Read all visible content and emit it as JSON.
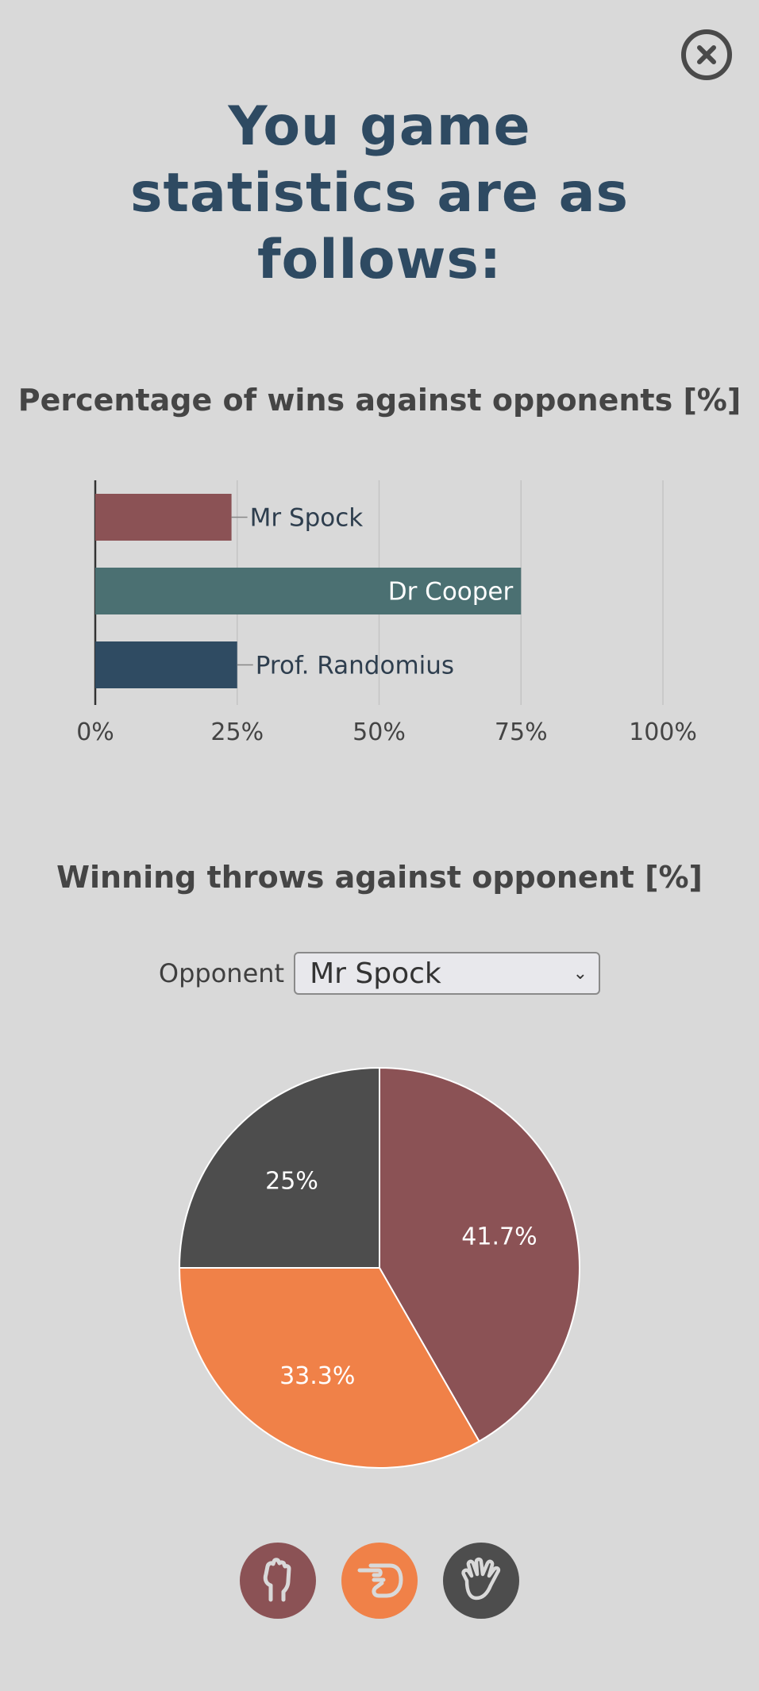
{
  "page": {
    "title": "You game statistics are as follows:",
    "close_icon": "close-circle-icon"
  },
  "wins_chart": {
    "title": "Percentage of wins against opponents [%]"
  },
  "throws_chart": {
    "title": "Winning throws against opponent [%]",
    "opponent_label": "Opponent",
    "opponent_selected": "Mr Spock"
  },
  "throw_buttons": [
    {
      "icon": "rock-fist-icon",
      "color": "#8b5255"
    },
    {
      "icon": "paper-hand-icon",
      "color": "#f08148"
    },
    {
      "icon": "spock-hand-icon",
      "color": "#4d4d4d"
    }
  ],
  "chart_data": [
    {
      "type": "bar",
      "orientation": "horizontal",
      "title": "Percentage of wins against opponents [%]",
      "categories": [
        "Mr Spock",
        "Dr Cooper",
        "Prof. Randomius"
      ],
      "values": [
        24,
        75,
        25
      ],
      "colors": [
        "#8b5255",
        "#4b7072",
        "#2f4b62"
      ],
      "x_ticks": [
        "0%",
        "25%",
        "50%",
        "75%",
        "100%"
      ],
      "xlim": [
        0,
        100
      ],
      "grid": true
    },
    {
      "type": "pie",
      "title": "Winning throws against opponent [%]",
      "labels": [
        "41.7%",
        "33.3%",
        "25%"
      ],
      "values": [
        41.7,
        33.3,
        25
      ],
      "colors": [
        "#8b5255",
        "#f08148",
        "#4d4d4d"
      ]
    }
  ]
}
